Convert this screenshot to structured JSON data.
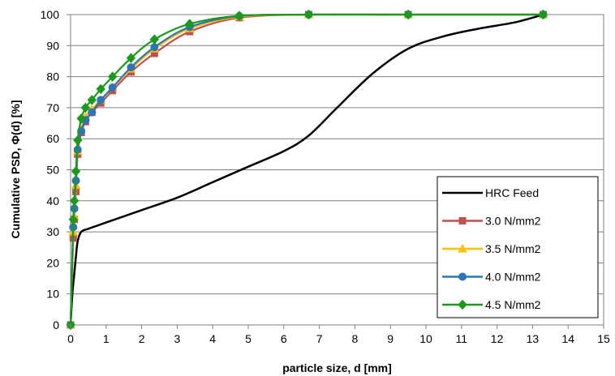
{
  "chart_data": {
    "type": "line",
    "title": "",
    "xlabel": "particle size, d [mm]",
    "ylabel": "Cumulative PSD, Φ(d) [%]",
    "xlim": [
      0,
      15
    ],
    "ylim": [
      0,
      100
    ],
    "xticks": [
      0,
      1,
      2,
      3,
      4,
      5,
      6,
      7,
      8,
      9,
      10,
      11,
      12,
      13,
      14,
      15
    ],
    "yticks": [
      0,
      10,
      20,
      30,
      40,
      50,
      60,
      70,
      80,
      90,
      100
    ],
    "grid": "horizontal",
    "legend_position": "bottom-right",
    "series": [
      {
        "name": "HRC Feed",
        "color": "#000000",
        "marker": "none",
        "x": [
          0,
          0.05,
          0.1,
          0.15,
          0.2,
          0.3,
          0.5,
          1.0,
          2.0,
          3.0,
          4.0,
          5.0,
          6.0,
          6.7,
          7.5,
          8.5,
          9.5,
          10.5,
          11.5,
          12.5,
          13.3
        ],
        "y": [
          0,
          10,
          16,
          22,
          27,
          30,
          31,
          33,
          37,
          41,
          46,
          51,
          56,
          61,
          70,
          81,
          89,
          93,
          95.5,
          97.5,
          100
        ]
      },
      {
        "name": "3.0 N/mm2",
        "color": "#c0504d",
        "marker": "square",
        "x": [
          0,
          0.075,
          0.106,
          0.15,
          0.2,
          0.3,
          0.42,
          0.6,
          0.85,
          1.18,
          1.7,
          2.36,
          3.35,
          4.75,
          6.7,
          9.5,
          13.3
        ],
        "y": [
          0,
          28,
          34,
          43,
          55,
          62,
          65.5,
          68.5,
          71.5,
          75.5,
          81.5,
          87.5,
          94.5,
          99,
          100,
          100,
          100
        ]
      },
      {
        "name": "3.5 N/mm2",
        "color": "#ffc000",
        "marker": "triangle",
        "x": [
          0,
          0.075,
          0.106,
          0.15,
          0.2,
          0.3,
          0.42,
          0.6,
          0.85,
          1.18,
          1.7,
          2.36,
          3.35,
          4.75,
          6.7,
          9.5,
          13.3
        ],
        "y": [
          0,
          30,
          35,
          45,
          56,
          63,
          67,
          69.5,
          72.5,
          76.5,
          82.5,
          89,
          95.5,
          99.3,
          100,
          100,
          100
        ]
      },
      {
        "name": "4.0 N/mm2",
        "color": "#2e75b6",
        "marker": "circle",
        "x": [
          0,
          0.075,
          0.106,
          0.15,
          0.2,
          0.3,
          0.42,
          0.6,
          0.85,
          1.18,
          1.7,
          2.36,
          3.35,
          4.75,
          6.7,
          9.5,
          13.3
        ],
        "y": [
          0,
          31.5,
          37.5,
          46.5,
          56.5,
          62.5,
          66,
          68.5,
          72.5,
          76.5,
          83,
          89.5,
          96,
          99.5,
          100,
          100,
          100
        ]
      },
      {
        "name": "4.5 N/mm2",
        "color": "#1a9a1a",
        "marker": "diamond",
        "x": [
          0,
          0.075,
          0.106,
          0.15,
          0.2,
          0.3,
          0.42,
          0.6,
          0.85,
          1.18,
          1.7,
          2.36,
          3.35,
          4.75,
          6.7,
          9.5,
          13.3
        ],
        "y": [
          0,
          34,
          40,
          49.5,
          59.5,
          66.5,
          70,
          72.5,
          76,
          80,
          86,
          92,
          97,
          99.6,
          100,
          100,
          100
        ]
      }
    ]
  }
}
